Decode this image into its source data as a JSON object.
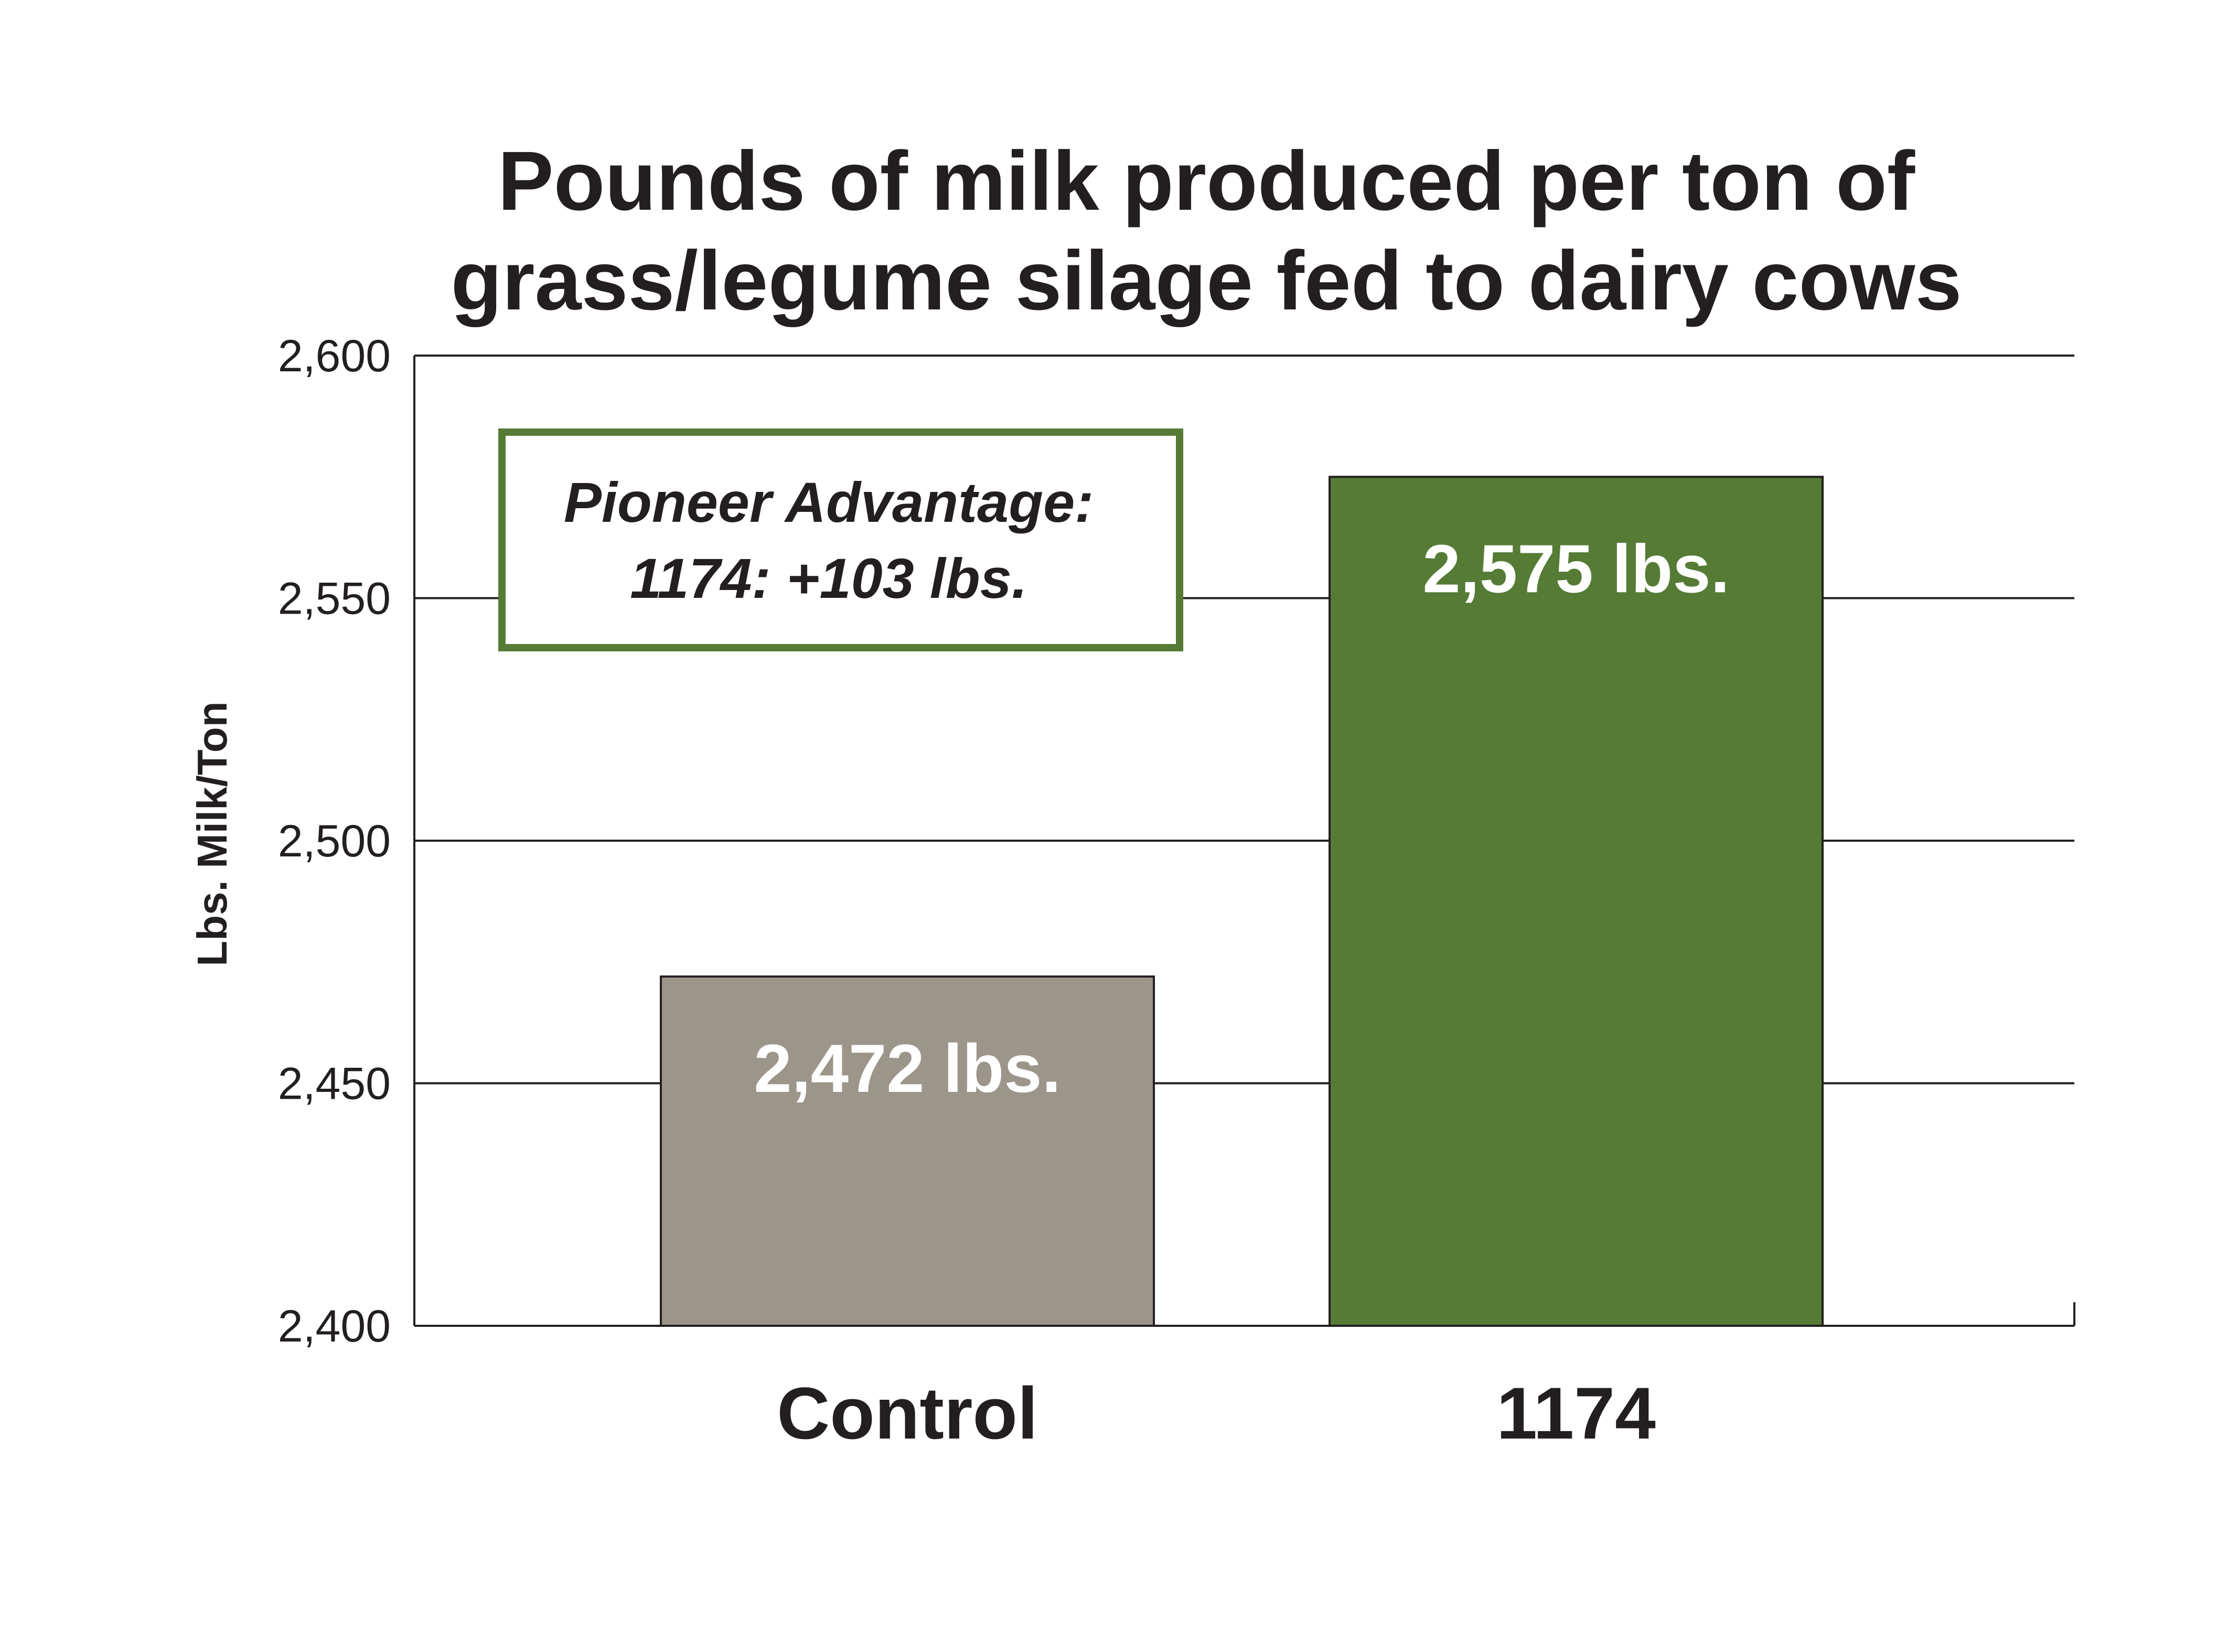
{
  "chart_data": {
    "type": "bar",
    "title_lines": [
      "Pounds of milk produced per ton of",
      "grass/legume silage fed to dairy cows"
    ],
    "ylabel": "Lbs. Milk/Ton",
    "xlabel": "",
    "ylim": [
      2400,
      2600
    ],
    "yticks": [
      2400,
      2450,
      2500,
      2550,
      2600
    ],
    "ytick_labels": [
      "2,400",
      "2,450",
      "2,500",
      "2,550",
      "2,600"
    ],
    "categories": [
      "Control",
      "1174"
    ],
    "values": [
      2472,
      2575
    ],
    "data_labels": [
      "2,472 lbs.",
      "2,575 lbs."
    ],
    "bar_colors": [
      "#9c958a",
      "#557b35"
    ],
    "grid": true,
    "legend": null,
    "annotation": {
      "lines": [
        "Pioneer Advantage:",
        "1174: +103 lbs."
      ],
      "border_color": "#557b35",
      "placement": "upper-left"
    }
  }
}
